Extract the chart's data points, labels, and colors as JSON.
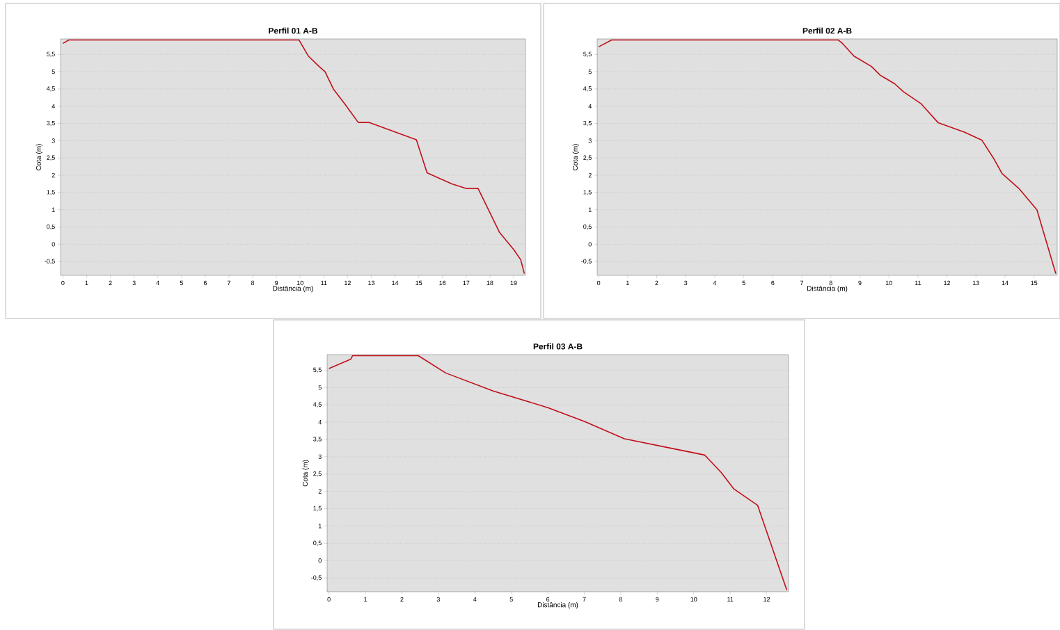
{
  "chart_data": [
    {
      "type": "line",
      "title": "Perfil 01 A-B",
      "xlabel": "Distância (m)",
      "ylabel": "Cota (m)",
      "color": "#c0101a",
      "grid": "y",
      "x": [
        0,
        0.25,
        9.95,
        10.35,
        10.8,
        11.05,
        11.4,
        11.9,
        12.45,
        12.9,
        14.9,
        15.35,
        16.4,
        17.0,
        17.5,
        18.4,
        19.0,
        19.3,
        19.45
      ],
      "values": [
        5.82,
        5.92,
        5.92,
        5.45,
        5.15,
        5.0,
        4.5,
        4.05,
        3.53,
        3.53,
        3.03,
        2.07,
        1.75,
        1.62,
        1.62,
        0.35,
        -0.15,
        -0.45,
        -0.85
      ],
      "xlim": [
        -0.1,
        19.5
      ],
      "ylim": [
        -0.9,
        5.95
      ],
      "xticks": [
        0,
        1,
        2,
        3,
        4,
        5,
        6,
        7,
        8,
        9,
        10,
        11,
        12,
        13,
        14,
        15,
        16,
        17,
        18,
        19
      ],
      "yticks": [
        {
          "value": -0.5,
          "label": "-0,5"
        },
        0,
        {
          "value": 0.5,
          "label": "0,5"
        },
        1,
        {
          "value": 1.5,
          "label": "1,5"
        },
        2,
        {
          "value": 2.5,
          "label": "2,5"
        },
        3,
        {
          "value": 3.5,
          "label": "3,5"
        },
        4,
        {
          "value": 4.5,
          "label": "4,5"
        },
        5,
        {
          "value": 5.5,
          "label": "5,5"
        }
      ]
    },
    {
      "type": "line",
      "title": "Perfil 02 A-B",
      "xlabel": "Distância (m)",
      "ylabel": "Cota (m)",
      "color": "#c0101a",
      "grid": "y",
      "x": [
        0,
        0.45,
        8.25,
        8.4,
        8.8,
        9.4,
        9.7,
        10.2,
        10.5,
        11.1,
        11.4,
        11.7,
        12.6,
        13.2,
        13.6,
        13.9,
        14.5,
        15.1,
        15.75
      ],
      "values": [
        5.72,
        5.92,
        5.92,
        5.82,
        5.45,
        5.15,
        4.9,
        4.65,
        4.42,
        4.08,
        3.8,
        3.52,
        3.25,
        3.02,
        2.5,
        2.05,
        1.6,
        1.0,
        -0.85
      ],
      "xlim": [
        -0.05,
        15.8
      ],
      "ylim": [
        -0.9,
        5.95
      ],
      "xticks": [
        0,
        1,
        2,
        3,
        4,
        5,
        6,
        7,
        8,
        9,
        10,
        11,
        12,
        13,
        14,
        15
      ],
      "yticks": [
        {
          "value": -0.5,
          "label": "-0,5"
        },
        0,
        {
          "value": 0.5,
          "label": "0,5"
        },
        1,
        {
          "value": 1.5,
          "label": "1,5"
        },
        2,
        {
          "value": 2.5,
          "label": "2,5"
        },
        3,
        {
          "value": 3.5,
          "label": "3,5"
        },
        4,
        {
          "value": 4.5,
          "label": "4,5"
        },
        5,
        {
          "value": 5.5,
          "label": "5,5"
        }
      ]
    },
    {
      "type": "line",
      "title": "Perfil 03 A-B",
      "xlabel": "Distância (m)",
      "ylabel": "Cota (m)",
      "color": "#c0101a",
      "grid": "y",
      "x": [
        0,
        0.6,
        0.65,
        2.45,
        3.2,
        4.5,
        6.0,
        7.0,
        8.1,
        9.5,
        10.3,
        10.75,
        11.1,
        11.75,
        12.55
      ],
      "values": [
        5.55,
        5.82,
        5.92,
        5.92,
        5.42,
        4.9,
        4.42,
        4.02,
        3.52,
        3.22,
        3.05,
        2.55,
        2.07,
        1.6,
        -0.85
      ],
      "xlim": [
        -0.05,
        12.6
      ],
      "ylim": [
        -0.9,
        5.95
      ],
      "xticks": [
        0,
        1,
        2,
        3,
        4,
        5,
        6,
        7,
        8,
        9,
        10,
        11,
        12
      ],
      "yticks": [
        {
          "value": -0.5,
          "label": "-0,5"
        },
        0,
        {
          "value": 0.5,
          "label": "0,5"
        },
        1,
        {
          "value": 1.5,
          "label": "1,5"
        },
        2,
        {
          "value": 2.5,
          "label": "2,5"
        },
        3,
        {
          "value": 3.5,
          "label": "3,5"
        },
        4,
        {
          "value": 4.5,
          "label": "4,5"
        },
        5,
        {
          "value": 5.5,
          "label": "5,5"
        }
      ]
    }
  ]
}
